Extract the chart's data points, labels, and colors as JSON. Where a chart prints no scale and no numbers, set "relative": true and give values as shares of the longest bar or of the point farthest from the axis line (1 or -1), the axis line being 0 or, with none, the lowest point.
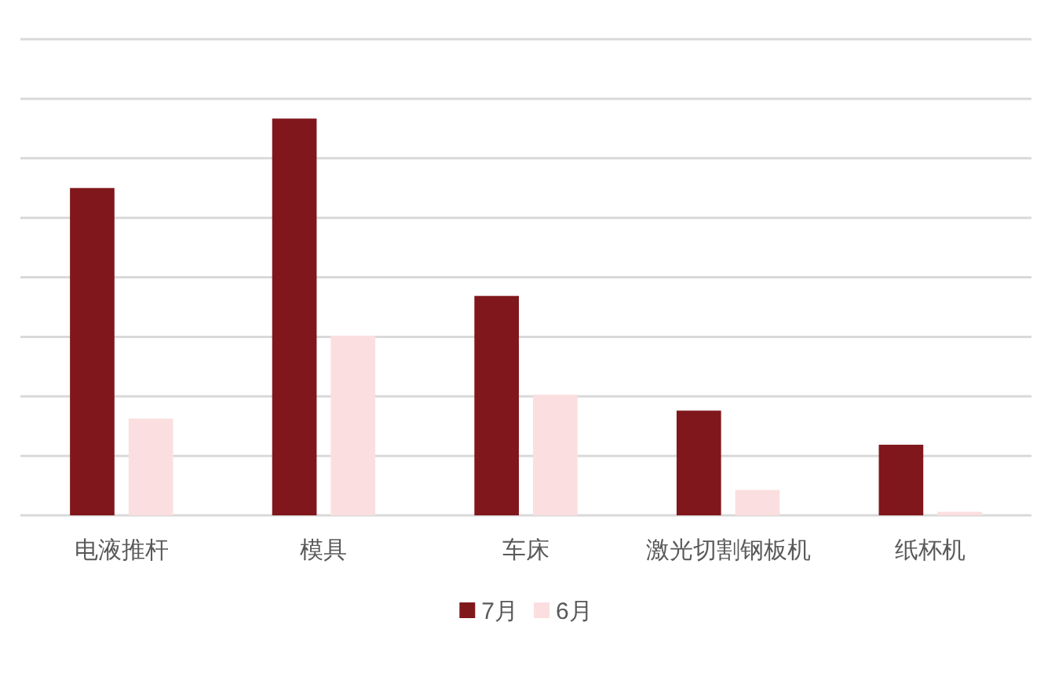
{
  "chart_data": {
    "type": "bar",
    "relative": true,
    "categories": [
      "电液推杆",
      "模具",
      "车床",
      "激光切割钢板机",
      "纸杯机"
    ],
    "series": [
      {
        "name": "7月",
        "color": "#7f171c",
        "values": [
          0.825,
          1,
          0.553,
          0.264,
          0.178
        ]
      },
      {
        "name": "6月",
        "color": "#fbdfe0",
        "values": [
          0.244,
          0.453,
          0.304,
          0.064,
          0.009
        ]
      }
    ],
    "grid": "y",
    "legend": "bottom"
  }
}
